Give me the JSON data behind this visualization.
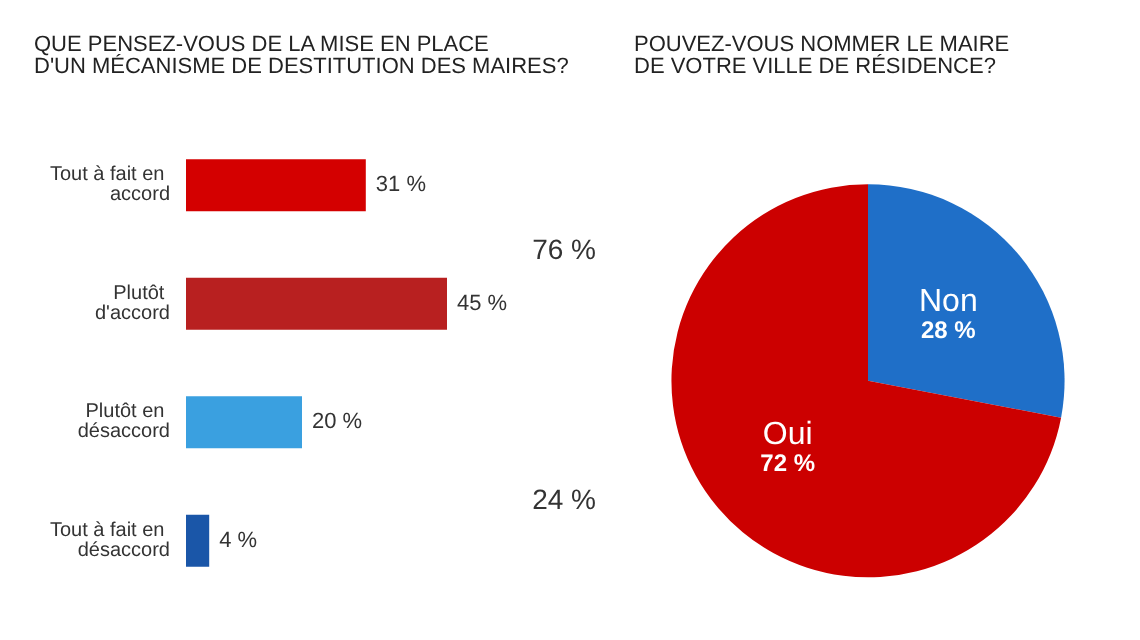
{
  "chart_data": [
    {
      "type": "bar",
      "orientation": "horizontal",
      "title": "QUE PENSEZ-VOUS DE LA MISE EN PLACE\nD'UN MÉCANISME DE DESTITUTION DES MAIRES?",
      "categories": [
        "Tout à fait en accord",
        "Plutôt d'accord",
        "Plutôt en désaccord",
        "Tout à fait en désaccord"
      ],
      "values": [
        31,
        45,
        20,
        4
      ],
      "colors": [
        "#d40000",
        "#b82020",
        "#3aa0e0",
        "#1a56a8"
      ],
      "value_labels": [
        "31 %",
        "45 %",
        "20 %",
        "4 %"
      ],
      "annotations": [
        "76 %",
        "24 %"
      ]
    },
    {
      "type": "pie",
      "title": "POUVEZ-VOUS NOMMER LE MAIRE\nDE VOTRE VILLE DE RÉSIDENCE?",
      "categories": [
        "Non",
        "Oui"
      ],
      "values": [
        28,
        72
      ],
      "colors": [
        "#1f6fc8",
        "#cc0000"
      ],
      "value_labels": [
        "28 %",
        "72 %"
      ]
    }
  ]
}
